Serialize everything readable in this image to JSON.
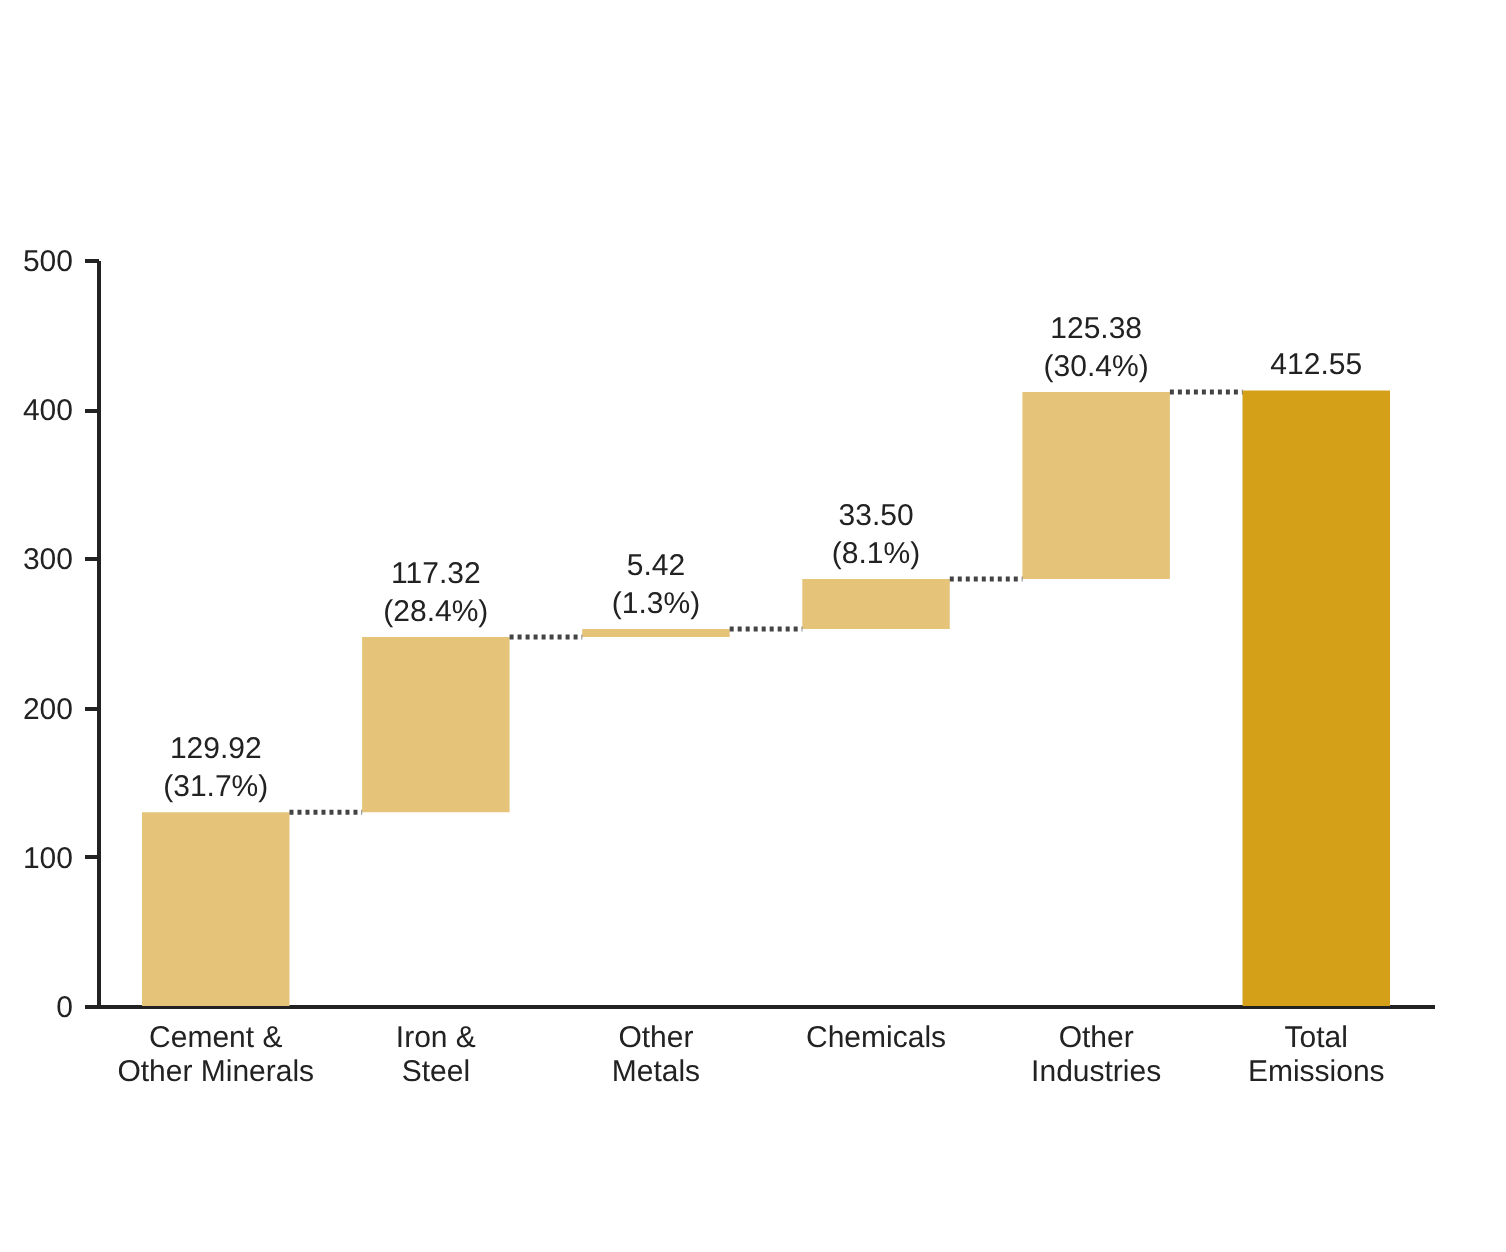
{
  "chart_data": {
    "type": "bar",
    "categories": [
      "Cement &\nOther Minerals",
      "Iron &\nSteel",
      "Other\nMetals",
      "Chemicals",
      "Other\nIndustries",
      "Total\nEmissions"
    ],
    "values": [
      129.92,
      117.32,
      5.42,
      33.5,
      125.38,
      412.55
    ],
    "base": [
      0,
      129.92,
      247.24,
      252.66,
      286.16,
      0
    ],
    "colors": [
      "#e5c47a",
      "#e5c47a",
      "#e5c47a",
      "#e5c47a",
      "#e5c47a",
      "#d4a017"
    ],
    "value_labels": [
      "129.92\n(31.7%)",
      "117.32\n(28.4%)",
      "5.42\n(1.3%)",
      "33.50\n(8.1%)",
      "125.38\n(30.4%)",
      "412.55"
    ],
    "ylim": [
      0,
      500
    ],
    "yticks": [
      0,
      100,
      200,
      300,
      400,
      500
    ],
    "grid": false
  }
}
